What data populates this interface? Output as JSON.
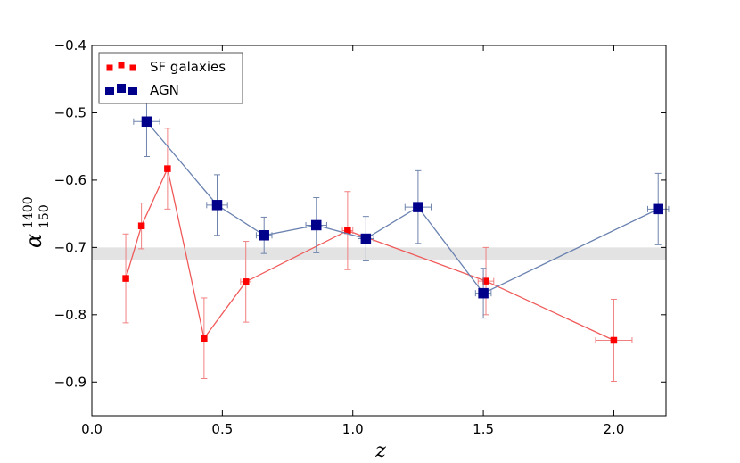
{
  "chart_data": {
    "type": "scatter",
    "title": "",
    "xlabel": "z",
    "ylabel": {
      "symbol": "α",
      "superscript": "1400",
      "subscript": "150"
    },
    "xlim": [
      0.0,
      2.2
    ],
    "ylim": [
      -0.95,
      -0.4
    ],
    "xticks": [
      0.0,
      0.5,
      1.0,
      1.5,
      2.0
    ],
    "xtick_labels": [
      "0.0",
      "0.5",
      "1.0",
      "1.5",
      "2.0"
    ],
    "yticks": [
      -0.4,
      -0.5,
      -0.6,
      -0.7,
      -0.8,
      -0.9
    ],
    "ytick_labels": [
      "−0.4",
      "−0.5",
      "−0.6",
      "−0.7",
      "−0.8",
      "−0.9"
    ],
    "grid": false,
    "legend_position": "top-left",
    "reference_band": {
      "y_low": -0.718,
      "y_high": -0.7,
      "color": "#e3e3e3"
    },
    "series": [
      {
        "name": "SF galaxies",
        "color": "#ff0000",
        "line_color": "#f05a5a",
        "errorbar_color": "#f08080",
        "marker": "square-small",
        "points": [
          {
            "x": 0.13,
            "y": -0.746,
            "xerr": 0.0,
            "yerr_low": 0.066,
            "yerr_high": 0.066
          },
          {
            "x": 0.19,
            "y": -0.668,
            "xerr": 0.0,
            "yerr_low": 0.034,
            "yerr_high": 0.034
          },
          {
            "x": 0.29,
            "y": -0.583,
            "xerr": 0.0,
            "yerr_low": 0.06,
            "yerr_high": 0.06
          },
          {
            "x": 0.43,
            "y": -0.835,
            "xerr": 0.0,
            "yerr_low": 0.06,
            "yerr_high": 0.06
          },
          {
            "x": 0.59,
            "y": -0.751,
            "xerr": 0.02,
            "yerr_low": 0.06,
            "yerr_high": 0.06
          },
          {
            "x": 0.98,
            "y": -0.675,
            "xerr": 0.02,
            "yerr_low": 0.058,
            "yerr_high": 0.058
          },
          {
            "x": 1.51,
            "y": -0.75,
            "xerr": 0.03,
            "yerr_low": 0.05,
            "yerr_high": 0.05
          },
          {
            "x": 2.0,
            "y": -0.838,
            "xerr": 0.07,
            "yerr_low": 0.061,
            "yerr_high": 0.061
          }
        ]
      },
      {
        "name": "AGN",
        "color": "#00008b",
        "line_color": "#6a82b0",
        "errorbar_color": "#6f84ad",
        "marker": "square-large",
        "points": [
          {
            "x": 0.21,
            "y": -0.513,
            "xerr": 0.05,
            "yerr_low": 0.052,
            "yerr_high": 0.052
          },
          {
            "x": 0.48,
            "y": -0.637,
            "xerr": 0.04,
            "yerr_low": 0.045,
            "yerr_high": 0.045
          },
          {
            "x": 0.66,
            "y": -0.682,
            "xerr": 0.03,
            "yerr_low": 0.027,
            "yerr_high": 0.027
          },
          {
            "x": 0.86,
            "y": -0.667,
            "xerr": 0.04,
            "yerr_low": 0.041,
            "yerr_high": 0.041
          },
          {
            "x": 1.05,
            "y": -0.687,
            "xerr": 0.03,
            "yerr_low": 0.033,
            "yerr_high": 0.033
          },
          {
            "x": 1.25,
            "y": -0.64,
            "xerr": 0.05,
            "yerr_low": 0.054,
            "yerr_high": 0.054
          },
          {
            "x": 1.5,
            "y": -0.768,
            "xerr": 0.03,
            "yerr_low": 0.037,
            "yerr_high": 0.037
          },
          {
            "x": 2.17,
            "y": -0.643,
            "xerr": 0.04,
            "yerr_low": 0.053,
            "yerr_high": 0.053
          }
        ]
      }
    ],
    "legend": [
      {
        "label": "SF galaxies",
        "series": 0
      },
      {
        "label": "AGN",
        "series": 1
      }
    ]
  }
}
